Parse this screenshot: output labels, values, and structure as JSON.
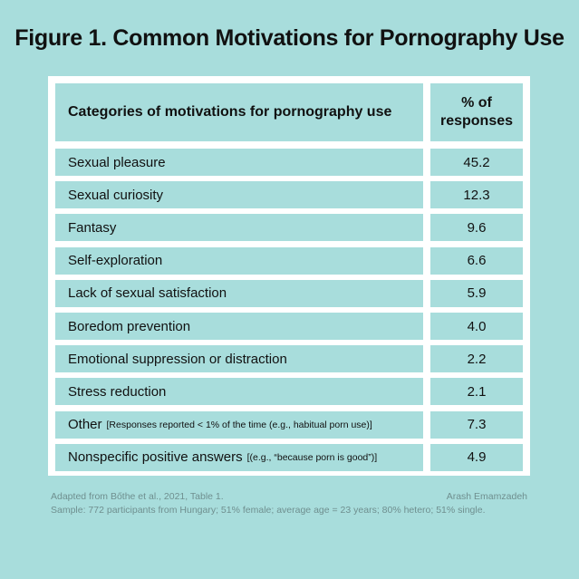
{
  "title": "Figure 1. Common Motivations for Pornography Use",
  "chart_data": {
    "type": "table",
    "columns": [
      "Categories of motivations for pornography use",
      "% of\nresponses"
    ],
    "rows": [
      {
        "category": "Sexual pleasure",
        "note": "",
        "value": "45.2"
      },
      {
        "category": "Sexual curiosity",
        "note": "",
        "value": "12.3"
      },
      {
        "category": "Fantasy",
        "note": "",
        "value": "9.6"
      },
      {
        "category": "Self-exploration",
        "note": "",
        "value": "6.6"
      },
      {
        "category": "Lack of sexual satisfaction",
        "note": "",
        "value": "5.9"
      },
      {
        "category": "Boredom prevention",
        "note": "",
        "value": "4.0"
      },
      {
        "category": "Emotional suppression or distraction",
        "note": "",
        "value": "2.2"
      },
      {
        "category": "Stress reduction",
        "note": "",
        "value": "2.1"
      },
      {
        "category": "Other",
        "note": "[Responses reported < 1% of the time (e.g., habitual porn use)]",
        "value": "7.3"
      },
      {
        "category": "Nonspecific positive answers",
        "note": "[(e.g., “because porn is good”)]",
        "value": "4.9"
      }
    ]
  },
  "footer": {
    "source": "Adapted from Bőthe et al., 2021, Table 1.",
    "author": "Arash Emamzadeh",
    "sample": "Sample: 772 participants from Hungary; 51% female; average age = 23 years; 80% hetero; 51% single."
  }
}
